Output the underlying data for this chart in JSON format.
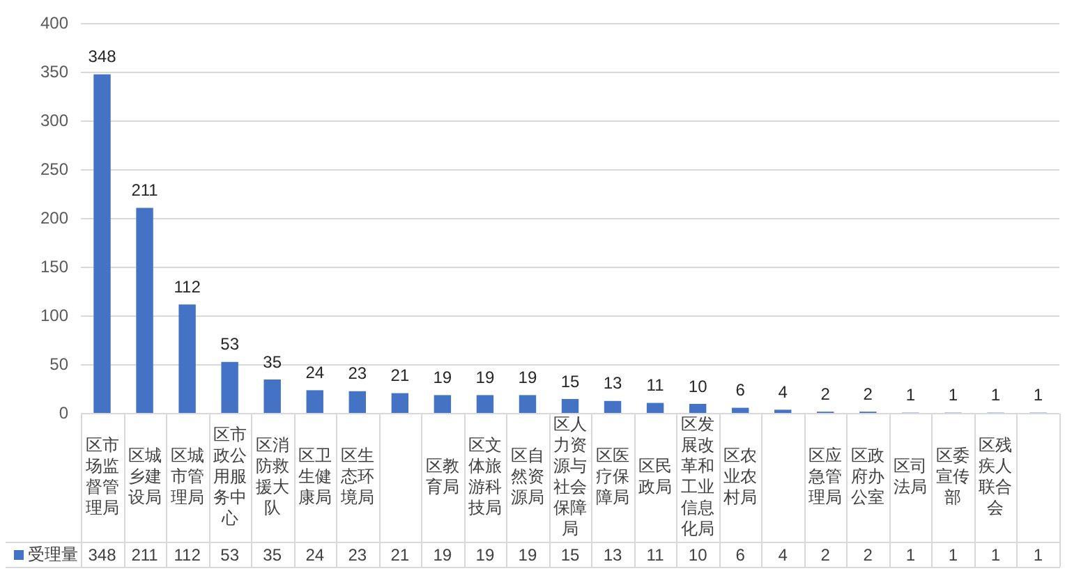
{
  "chart_data": {
    "type": "bar",
    "categories": [
      "区市场监督管理局",
      "区城乡建设局",
      "区城市管理局",
      "区市政公用服务中心",
      "区消防救援大队",
      "区卫生健康局",
      "区生态环境局",
      null,
      "区教育局",
      "区文体旅游科技局",
      "区自然资源局",
      "区人力资源与社会保障局",
      "区医疗保障局",
      "区民政局",
      "区发展改革和工业信息化局",
      "区农业农村局",
      null,
      "区应急管理局",
      "区政府办公室",
      "区司法局",
      "区委宣传部",
      "区残疾人联合会",
      null
    ],
    "series": [
      {
        "name": "受理量",
        "color": "#4472c4",
        "values": [
          348,
          211,
          112,
          53,
          35,
          24,
          23,
          21,
          19,
          19,
          19,
          15,
          13,
          11,
          10,
          6,
          4,
          2,
          2,
          1,
          1,
          1,
          1
        ],
        "value_labels": [
          "348",
          "211",
          "112",
          "53",
          "35",
          "24",
          "23",
          "21",
          "19",
          "19",
          "19",
          "15",
          "13",
          "11",
          "10",
          "6",
          "4",
          "2",
          "2",
          "1",
          "1",
          "1",
          "1"
        ]
      }
    ],
    "ylim": [
      0,
      400
    ],
    "yticks": [
      0,
      50,
      100,
      150,
      200,
      250,
      300,
      350,
      400
    ],
    "grid": "y",
    "legend": "bottom left",
    "data_labels": true
  }
}
